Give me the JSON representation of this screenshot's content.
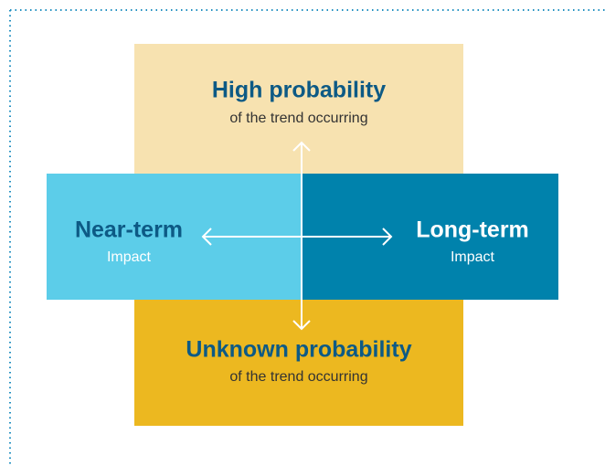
{
  "quadrants": [
    {
      "title": "High probability",
      "subtitle": "of the trend occurring"
    },
    {
      "title": "Near-term",
      "subtitle": "Impact"
    },
    {
      "title": "Long-term",
      "subtitle": "Impact"
    },
    {
      "title": "Unknown probability",
      "subtitle": "of the trend occurring"
    }
  ]
}
